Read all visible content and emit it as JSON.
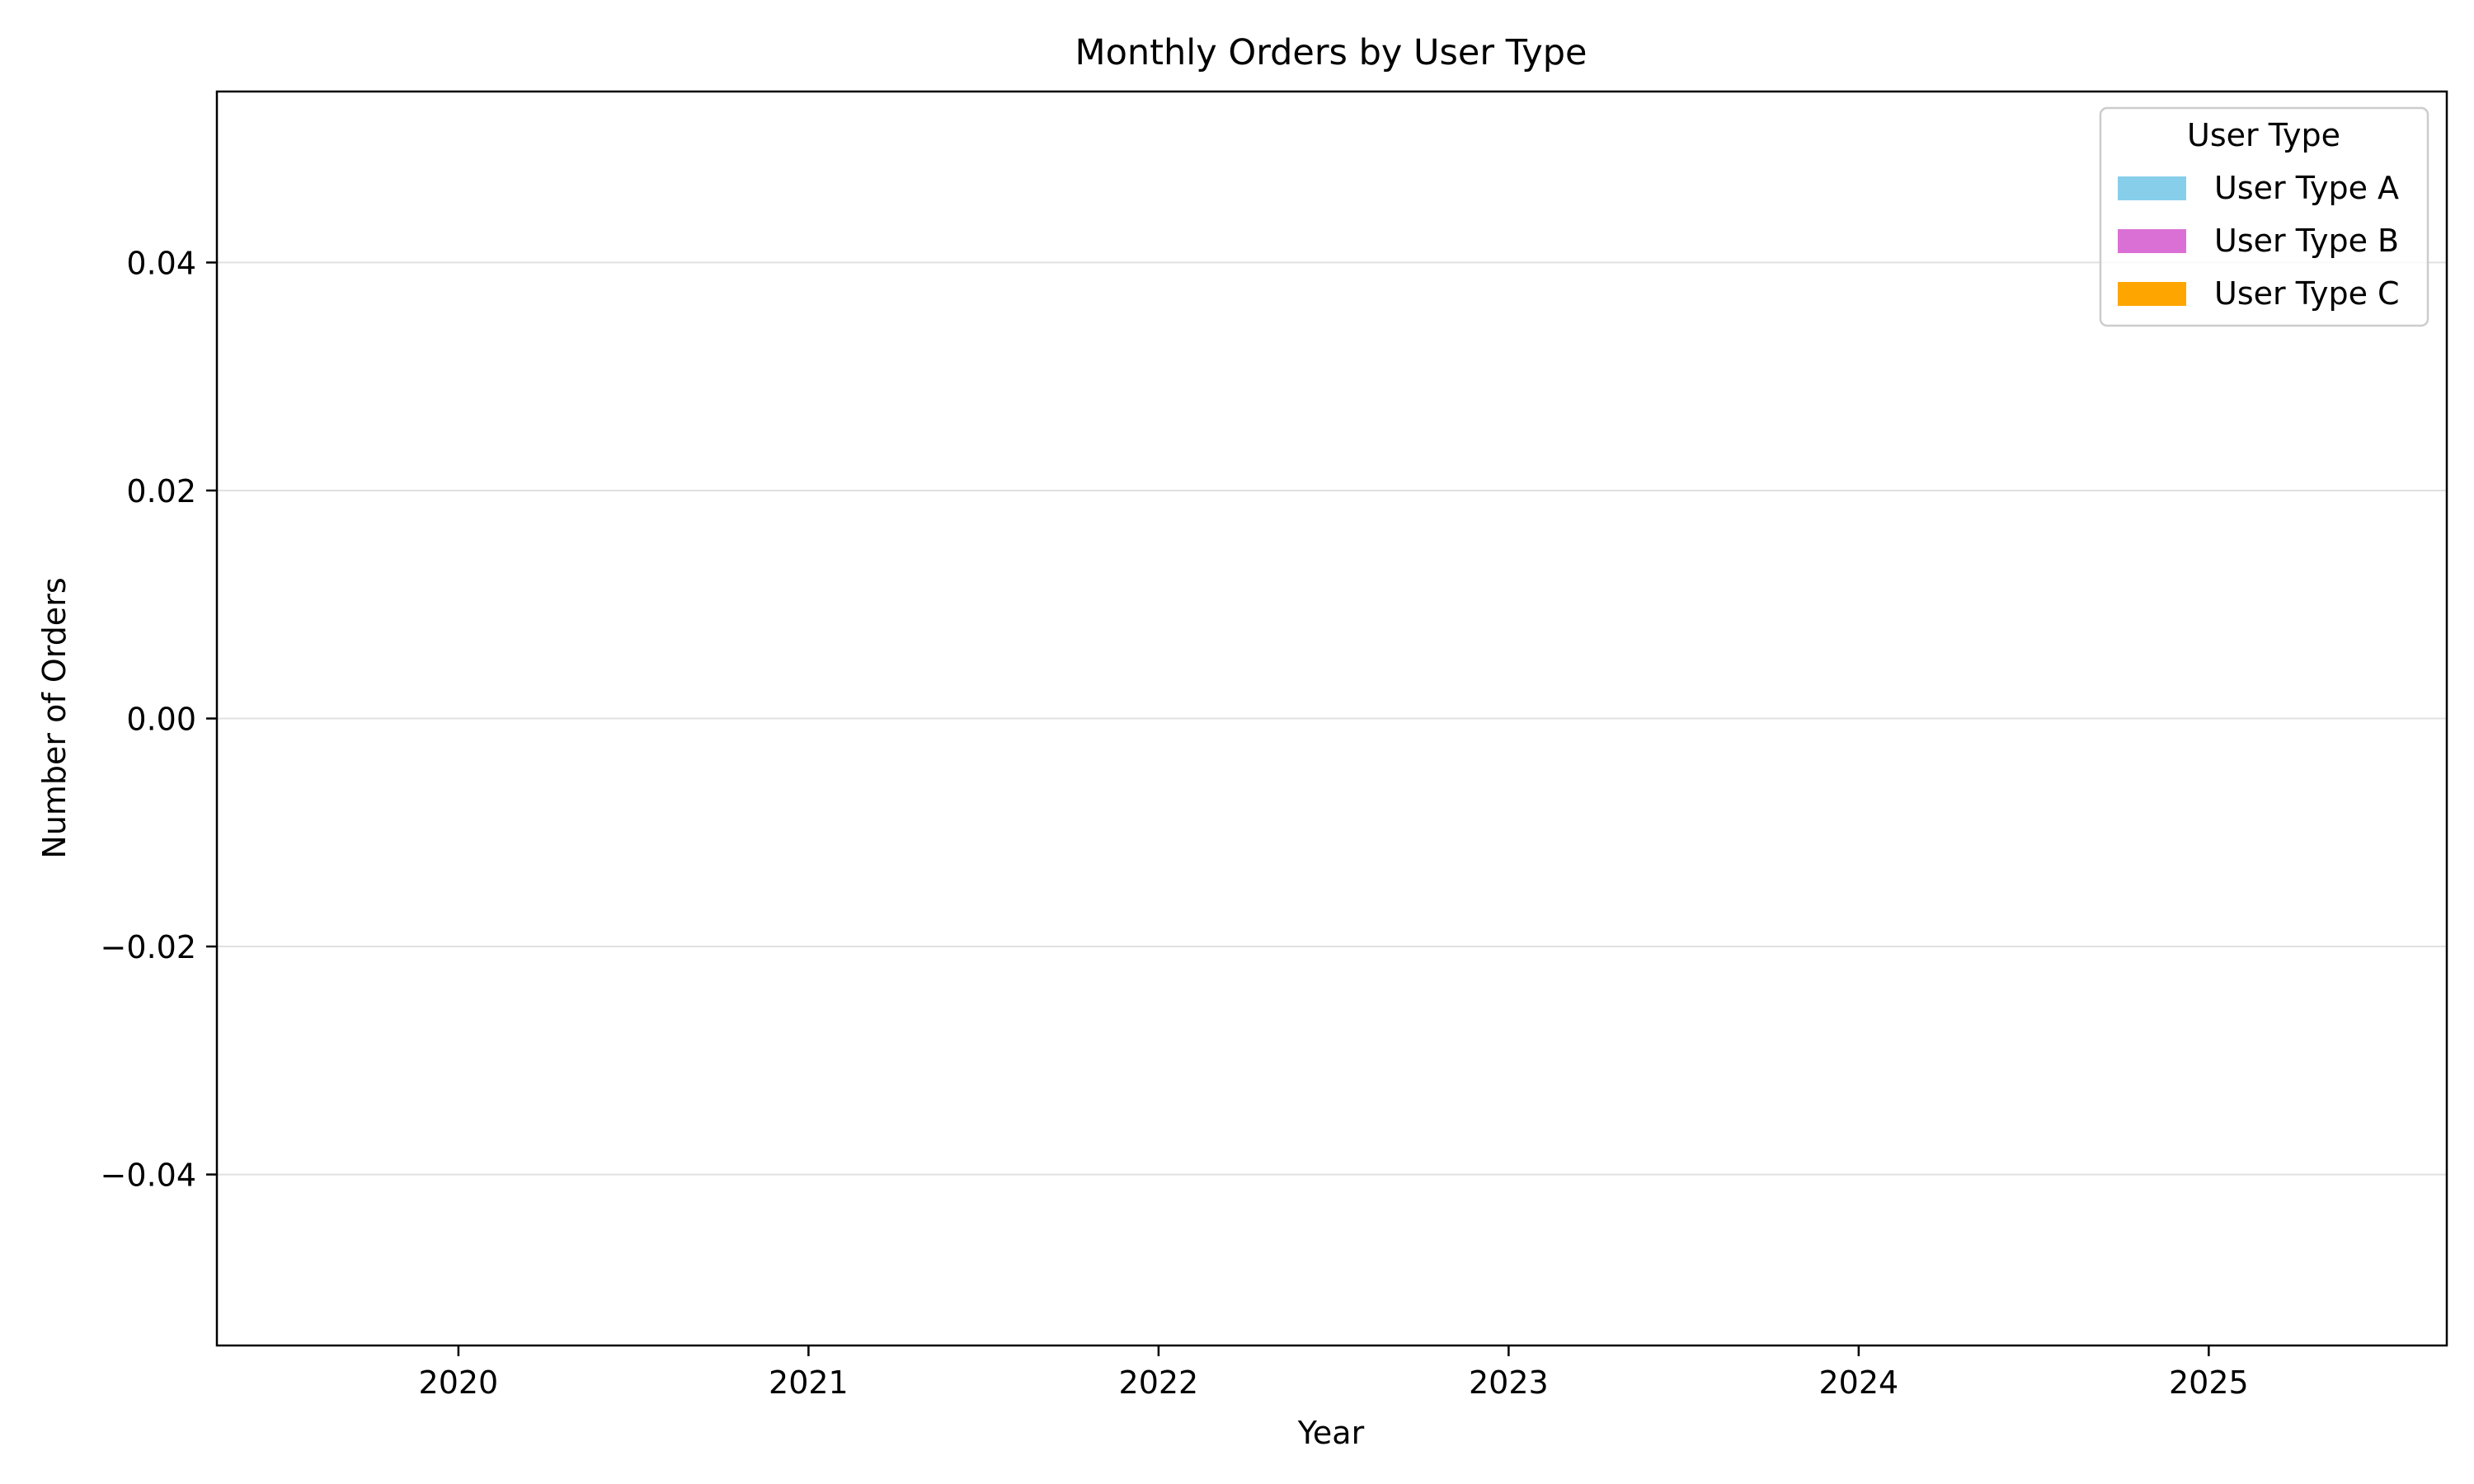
{
  "chart_data": {
    "type": "area",
    "title": "Monthly Orders by User Type",
    "xlabel": "Year",
    "ylabel": "Number of Orders",
    "x_ticks": [
      "2020",
      "2021",
      "2022",
      "2023",
      "2024",
      "2025"
    ],
    "xlim": [
      2019.31,
      2025.68
    ],
    "ylim": [
      -0.055,
      0.055
    ],
    "y_ticks": [
      -0.04,
      -0.02,
      0.0,
      0.02,
      0.04
    ],
    "y_tick_labels": [
      "−0.04",
      "−0.02",
      "0.00",
      "0.02",
      "0.04"
    ],
    "grid": {
      "y": true,
      "x": false
    },
    "legend": {
      "title": "User Type",
      "placement": "top-right"
    },
    "series": [
      {
        "name": "User Type A",
        "color": "#87ceeb",
        "values": []
      },
      {
        "name": "User Type B",
        "color": "#da70d6",
        "values": []
      },
      {
        "name": "User Type C",
        "color": "#ffa500",
        "values": []
      }
    ]
  }
}
